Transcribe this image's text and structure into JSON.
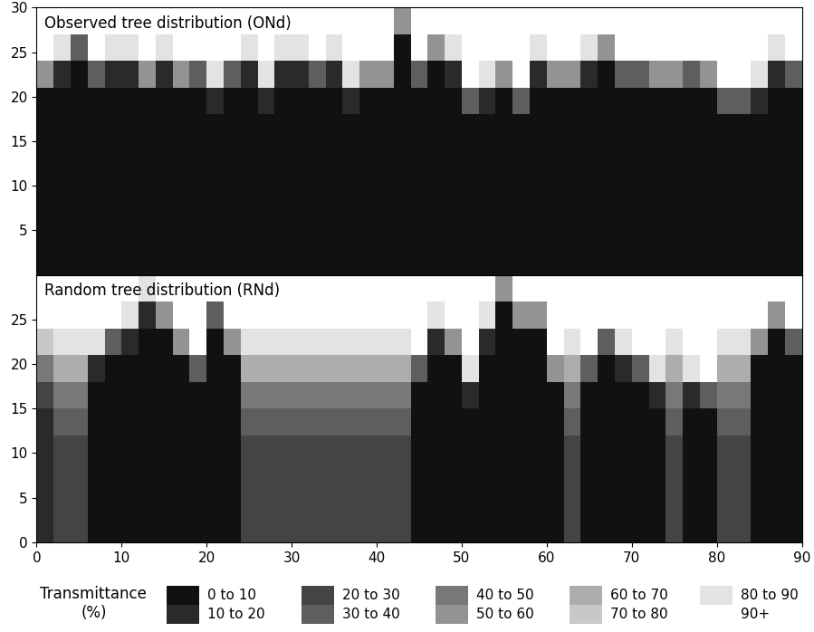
{
  "chart_data": [
    {
      "type": "heatmap",
      "title": "Observed tree distribution (ONd)",
      "x_edges": [
        0,
        2,
        4,
        6,
        8,
        10,
        12,
        14,
        16,
        18,
        20,
        22,
        24,
        26,
        28,
        30,
        32,
        34,
        36,
        38,
        40,
        42,
        44,
        46,
        48,
        50,
        52,
        54,
        56,
        58,
        60,
        62,
        64,
        66,
        68,
        70,
        72,
        74,
        76,
        78,
        80,
        82,
        84,
        86,
        88,
        90
      ],
      "y_edges": [
        0,
        3,
        6,
        9,
        12,
        15,
        18,
        21,
        24,
        27,
        30
      ],
      "cells": [
        [
          5,
          5,
          5,
          5,
          5,
          5,
          5,
          55,
          95,
          95
        ],
        [
          5,
          5,
          5,
          5,
          5,
          5,
          5,
          15,
          85,
          95
        ],
        [
          5,
          5,
          5,
          5,
          5,
          5,
          5,
          5,
          35,
          95
        ],
        [
          5,
          5,
          5,
          5,
          5,
          5,
          5,
          35,
          95,
          95
        ],
        [
          5,
          5,
          5,
          5,
          5,
          5,
          5,
          15,
          85,
          95
        ],
        [
          5,
          5,
          5,
          5,
          5,
          5,
          5,
          15,
          85,
          95
        ],
        [
          5,
          5,
          5,
          5,
          5,
          5,
          5,
          55,
          95,
          95
        ],
        [
          5,
          5,
          5,
          5,
          5,
          5,
          5,
          15,
          85,
          95
        ],
        [
          5,
          5,
          5,
          5,
          5,
          5,
          5,
          55,
          95,
          95
        ],
        [
          5,
          5,
          5,
          5,
          5,
          5,
          5,
          35,
          95,
          95
        ],
        [
          5,
          5,
          5,
          5,
          5,
          5,
          15,
          85,
          95,
          95
        ],
        [
          5,
          5,
          5,
          5,
          5,
          5,
          5,
          35,
          95,
          95
        ],
        [
          5,
          5,
          5,
          5,
          5,
          5,
          5,
          15,
          85,
          95
        ],
        [
          5,
          5,
          5,
          5,
          5,
          5,
          15,
          85,
          95,
          95
        ],
        [
          5,
          5,
          5,
          5,
          5,
          5,
          5,
          15,
          85,
          95
        ],
        [
          5,
          5,
          5,
          5,
          5,
          5,
          5,
          15,
          85,
          95
        ],
        [
          5,
          5,
          5,
          5,
          5,
          5,
          5,
          35,
          95,
          95
        ],
        [
          5,
          5,
          5,
          5,
          5,
          5,
          5,
          15,
          85,
          95
        ],
        [
          5,
          5,
          5,
          5,
          5,
          5,
          15,
          85,
          95,
          95
        ],
        [
          5,
          5,
          5,
          5,
          5,
          5,
          5,
          55,
          95,
          95
        ],
        [
          5,
          5,
          5,
          5,
          5,
          5,
          5,
          55,
          95,
          95
        ],
        [
          5,
          5,
          5,
          5,
          5,
          5,
          5,
          5,
          5,
          55
        ],
        [
          5,
          5,
          5,
          5,
          5,
          5,
          5,
          35,
          95,
          95
        ],
        [
          5,
          5,
          5,
          5,
          5,
          5,
          5,
          5,
          55,
          95
        ],
        [
          5,
          5,
          5,
          5,
          5,
          5,
          5,
          15,
          85,
          95
        ],
        [
          5,
          5,
          5,
          5,
          5,
          5,
          35,
          95,
          95,
          95
        ],
        [
          5,
          5,
          5,
          5,
          5,
          5,
          15,
          85,
          95,
          95
        ],
        [
          5,
          5,
          5,
          5,
          5,
          5,
          5,
          55,
          95,
          95
        ],
        [
          5,
          5,
          5,
          5,
          5,
          5,
          35,
          95,
          95,
          95
        ],
        [
          5,
          5,
          5,
          5,
          5,
          5,
          5,
          15,
          85,
          95
        ],
        [
          5,
          5,
          5,
          5,
          5,
          5,
          5,
          55,
          95,
          95
        ],
        [
          5,
          5,
          5,
          5,
          5,
          5,
          5,
          55,
          95,
          95
        ],
        [
          5,
          5,
          5,
          5,
          5,
          5,
          5,
          15,
          85,
          95
        ],
        [
          5,
          5,
          5,
          5,
          5,
          5,
          5,
          5,
          55,
          95
        ],
        [
          5,
          5,
          5,
          5,
          5,
          5,
          5,
          35,
          95,
          95
        ],
        [
          5,
          5,
          5,
          5,
          5,
          5,
          5,
          35,
          95,
          95
        ],
        [
          5,
          5,
          5,
          5,
          5,
          5,
          5,
          55,
          95,
          95
        ],
        [
          5,
          5,
          5,
          5,
          5,
          5,
          5,
          55,
          95,
          95
        ],
        [
          5,
          5,
          5,
          5,
          5,
          5,
          5,
          35,
          95,
          95
        ],
        [
          5,
          5,
          5,
          5,
          5,
          5,
          5,
          55,
          95,
          95
        ],
        [
          5,
          5,
          5,
          5,
          5,
          5,
          35,
          95,
          95,
          95
        ],
        [
          5,
          5,
          5,
          5,
          5,
          5,
          35,
          95,
          95,
          95
        ],
        [
          5,
          5,
          5,
          5,
          5,
          5,
          15,
          85,
          95,
          95
        ],
        [
          5,
          5,
          5,
          5,
          5,
          5,
          5,
          15,
          85,
          95
        ],
        [
          5,
          5,
          5,
          5,
          5,
          5,
          5,
          35,
          95,
          95
        ]
      ],
      "xlim": [
        0,
        90
      ],
      "ylim": [
        0,
        30
      ],
      "yticks": [
        5,
        10,
        15,
        20,
        25,
        30
      ],
      "tick_labels": "y"
    },
    {
      "type": "heatmap",
      "title": "Random tree distribution (RNd)",
      "x_edges": [
        0,
        2,
        4,
        6,
        8,
        10,
        12,
        14,
        16,
        18,
        20,
        22,
        24,
        26,
        28,
        30,
        32,
        34,
        36,
        38,
        40,
        42,
        44,
        46,
        48,
        50,
        52,
        54,
        56,
        58,
        60,
        62,
        64,
        66,
        68,
        70,
        72,
        74,
        76,
        78,
        80,
        82,
        84,
        86,
        88,
        90
      ],
      "y_edges": [
        0,
        3,
        6,
        9,
        12,
        15,
        18,
        21,
        24,
        27,
        30
      ],
      "cells": [
        [
          15,
          15,
          15,
          15,
          15,
          25,
          45,
          75,
          95,
          95
        ],
        [
          25,
          25,
          25,
          25,
          35,
          45,
          65,
          85,
          95,
          95
        ],
        [
          25,
          25,
          25,
          25,
          35,
          45,
          65,
          85,
          95,
          95
        ],
        [
          5,
          5,
          5,
          5,
          5,
          5,
          15,
          85,
          95,
          95
        ],
        [
          5,
          5,
          5,
          5,
          5,
          5,
          5,
          35,
          95,
          95
        ],
        [
          5,
          5,
          5,
          5,
          5,
          5,
          5,
          15,
          85,
          95
        ],
        [
          5,
          5,
          5,
          5,
          5,
          5,
          5,
          5,
          15,
          85
        ],
        [
          5,
          5,
          5,
          5,
          5,
          5,
          5,
          5,
          55,
          95
        ],
        [
          5,
          5,
          5,
          5,
          5,
          5,
          5,
          55,
          95,
          95
        ],
        [
          5,
          5,
          5,
          5,
          5,
          5,
          35,
          95,
          95,
          95
        ],
        [
          5,
          5,
          5,
          5,
          5,
          5,
          5,
          5,
          35,
          95
        ],
        [
          5,
          5,
          5,
          5,
          5,
          5,
          5,
          55,
          95,
          95
        ],
        [
          25,
          25,
          25,
          25,
          35,
          45,
          65,
          85,
          95,
          95
        ],
        [
          25,
          25,
          25,
          25,
          35,
          45,
          65,
          85,
          95,
          95
        ],
        [
          25,
          25,
          25,
          25,
          35,
          45,
          65,
          85,
          95,
          95
        ],
        [
          25,
          25,
          25,
          25,
          35,
          45,
          65,
          85,
          95,
          95
        ],
        [
          25,
          25,
          25,
          25,
          35,
          45,
          65,
          85,
          95,
          95
        ],
        [
          25,
          25,
          25,
          25,
          35,
          45,
          65,
          85,
          95,
          95
        ],
        [
          25,
          25,
          25,
          25,
          35,
          45,
          65,
          85,
          95,
          95
        ],
        [
          25,
          25,
          25,
          25,
          35,
          45,
          65,
          85,
          95,
          95
        ],
        [
          25,
          25,
          25,
          25,
          35,
          45,
          65,
          85,
          95,
          95
        ],
        [
          25,
          25,
          25,
          25,
          35,
          45,
          65,
          85,
          95,
          95
        ],
        [
          5,
          5,
          5,
          5,
          5,
          5,
          35,
          95,
          95,
          95
        ],
        [
          5,
          5,
          5,
          5,
          5,
          5,
          5,
          15,
          85,
          95
        ],
        [
          5,
          5,
          5,
          5,
          5,
          5,
          5,
          55,
          95,
          95
        ],
        [
          5,
          5,
          5,
          5,
          5,
          15,
          85,
          95,
          95,
          95
        ],
        [
          5,
          5,
          5,
          5,
          5,
          5,
          5,
          15,
          85,
          95
        ],
        [
          5,
          5,
          5,
          5,
          5,
          5,
          5,
          5,
          5,
          55
        ],
        [
          5,
          5,
          5,
          5,
          5,
          5,
          5,
          5,
          55,
          95
        ],
        [
          5,
          5,
          5,
          5,
          5,
          5,
          5,
          5,
          55,
          95
        ],
        [
          5,
          5,
          5,
          5,
          5,
          5,
          55,
          95,
          95,
          95
        ],
        [
          25,
          25,
          25,
          25,
          35,
          45,
          65,
          85,
          95,
          95
        ],
        [
          5,
          5,
          5,
          5,
          5,
          5,
          35,
          95,
          95,
          95
        ],
        [
          5,
          5,
          5,
          5,
          5,
          5,
          5,
          35,
          95,
          95
        ],
        [
          5,
          5,
          5,
          5,
          5,
          5,
          15,
          85,
          95,
          95
        ],
        [
          5,
          5,
          5,
          5,
          5,
          5,
          35,
          95,
          95,
          95
        ],
        [
          5,
          5,
          5,
          5,
          5,
          15,
          85,
          95,
          95,
          95
        ],
        [
          25,
          25,
          25,
          25,
          35,
          45,
          65,
          85,
          95,
          95
        ],
        [
          5,
          5,
          5,
          5,
          5,
          15,
          85,
          95,
          95,
          95
        ],
        [
          5,
          5,
          5,
          5,
          5,
          35,
          95,
          95,
          95,
          95
        ],
        [
          25,
          25,
          25,
          25,
          35,
          45,
          65,
          85,
          95,
          95
        ],
        [
          25,
          25,
          25,
          25,
          35,
          45,
          65,
          85,
          95,
          95
        ],
        [
          5,
          5,
          5,
          5,
          5,
          5,
          5,
          55,
          95,
          95
        ],
        [
          5,
          5,
          5,
          5,
          5,
          5,
          5,
          5,
          55,
          95
        ],
        [
          5,
          5,
          5,
          5,
          5,
          5,
          5,
          35,
          95,
          95
        ]
      ],
      "xlim": [
        0,
        90
      ],
      "ylim": [
        0,
        30
      ],
      "xticks": [
        0,
        10,
        20,
        30,
        40,
        50,
        60,
        70,
        80,
        90
      ],
      "yticks": [
        0,
        5,
        10,
        15,
        20,
        25
      ]
    }
  ],
  "color_scale": {
    "title": "Transmittance\n(%)",
    "levels": [
      0,
      10,
      20,
      30,
      40,
      50,
      60,
      70,
      80,
      90,
      100
    ],
    "labels": [
      "0 to 10",
      "10 to 20",
      "20 to 30",
      "30 to 40",
      "40 to 50",
      "50 to 60",
      "60 to 70",
      "70 to 80",
      "80 to 90",
      "90+"
    ],
    "colors": [
      "#111111",
      "#2a2a2a",
      "#444444",
      "#5e5e5e",
      "#787878",
      "#939393",
      "#adadad",
      "#c8c8c8",
      "#e3e3e3",
      "#ffffff"
    ]
  }
}
